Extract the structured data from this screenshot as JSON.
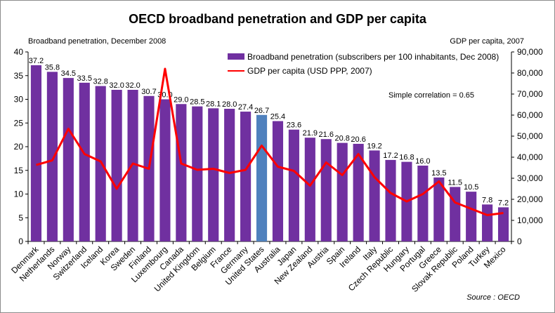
{
  "chart_data": {
    "type": "bar",
    "title": "OECD broadband penetration and GDP per capita",
    "left_axis_label": "Broadband penetration, December 2008",
    "right_axis_label": "GDP per capita, 2007",
    "categories": [
      "Denmark",
      "Netherlands",
      "Norway",
      "Switzerland",
      "Iceland",
      "Korea",
      "Sweden",
      "Finland",
      "Luxembourg",
      "Canada",
      "United Kingdom",
      "Belgium",
      "France",
      "Germany",
      "United States",
      "Australia",
      "Japan",
      "New Zealand",
      "Austria",
      "Spain",
      "Ireland",
      "Italy",
      "Czech Republic",
      "Hungary",
      "Portugal",
      "Greece",
      "Slovak Republic",
      "Poland",
      "Turkey",
      "Mexico"
    ],
    "series": [
      {
        "name": "Broadband penetration (subscribers per 100 inhabitants, Dec 2008)",
        "kind": "bar",
        "axis": "left",
        "values": [
          37.2,
          35.8,
          34.5,
          33.5,
          32.8,
          32.0,
          32.0,
          30.7,
          30.0,
          29.0,
          28.5,
          28.1,
          28.0,
          27.4,
          26.7,
          25.4,
          23.6,
          21.9,
          21.6,
          20.8,
          20.6,
          19.2,
          17.2,
          16.8,
          16.0,
          13.5,
          11.5,
          10.5,
          7.8,
          7.2
        ],
        "labels": [
          "37.2",
          "35.8",
          "34.5",
          "33.5",
          "32.8",
          "32.0",
          "32.0",
          "30.7",
          "30.0",
          "29.0",
          "28.5",
          "28.1",
          "28.0",
          "27.4",
          "26.7",
          "25.4",
          "23.6",
          "21.9",
          "21.6",
          "20.8",
          "20.6",
          "19.2",
          "17.2",
          "16.8",
          "16.0",
          "13.5",
          "11.5",
          "10.5",
          "7.8",
          "7.2"
        ]
      },
      {
        "name": "GDP per capita (USD PPP, 2007)",
        "kind": "line",
        "axis": "right",
        "values": [
          36300,
          38500,
          53500,
          41500,
          38000,
          25000,
          37000,
          34500,
          82000,
          37000,
          34000,
          34500,
          32500,
          34000,
          45500,
          35500,
          33500,
          26500,
          37500,
          31500,
          41500,
          30500,
          23000,
          19000,
          22500,
          28500,
          18500,
          15500,
          12500,
          13500
        ]
      }
    ],
    "highlight_category": "United States",
    "left_ylim": [
      0,
      40
    ],
    "left_ticks": [
      "0",
      "5",
      "10",
      "15",
      "20",
      "25",
      "30",
      "35",
      "40"
    ],
    "right_ylim": [
      0,
      90000
    ],
    "right_ticks": [
      "0",
      "10,000",
      "20,000",
      "30,000",
      "40,000",
      "50,000",
      "60,000",
      "70,000",
      "80,000",
      "90,000"
    ],
    "annotation": "Simple correlation = 0.65",
    "source": "Source : OECD",
    "legend_position": "top-right",
    "colors": {
      "bar": "#7030a0",
      "highlight_bar": "#4f81bd",
      "line": "#ff0000"
    }
  }
}
